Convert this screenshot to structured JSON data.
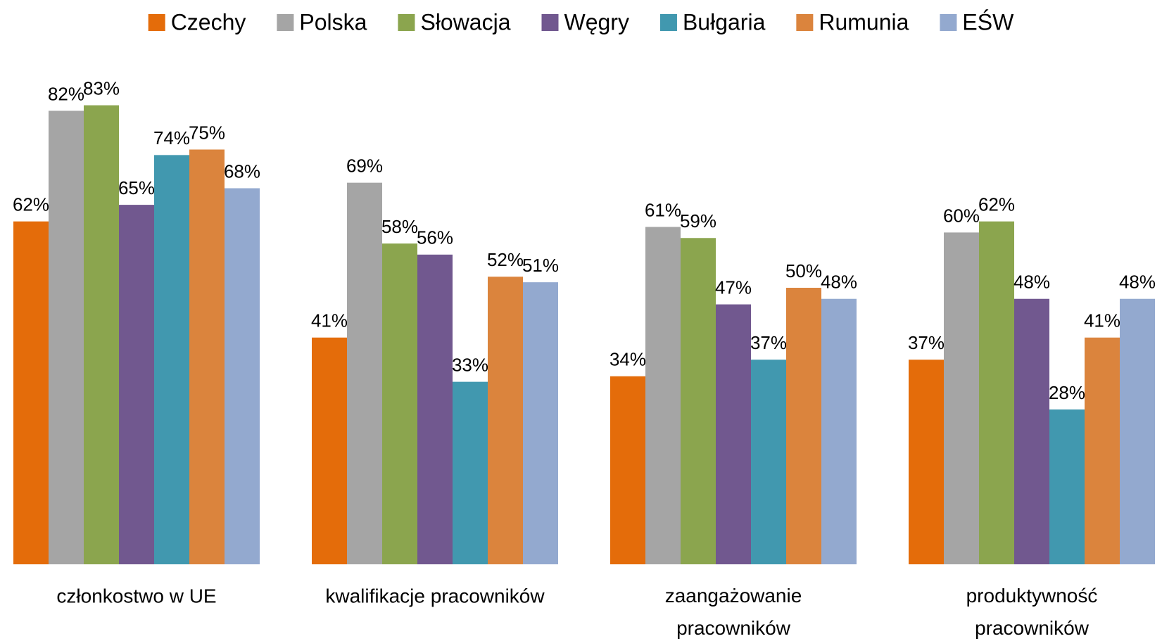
{
  "chart_data": {
    "type": "bar",
    "categories": [
      "członkostwo w UE",
      "kwalifikacje pracowników",
      "zaangażowanie pracowników",
      "produktywność pracowników"
    ],
    "series": [
      {
        "name": "Czechy",
        "color": "#E46C0A",
        "values": [
          62,
          41,
          34,
          37
        ],
        "value_labels": [
          "62%",
          "41%",
          "34%",
          "37%"
        ]
      },
      {
        "name": "Polska",
        "color": "#A5A5A5",
        "values": [
          82,
          69,
          61,
          60
        ],
        "value_labels": [
          "82%",
          "69%",
          "61%",
          "60%"
        ]
      },
      {
        "name": "Słowacja",
        "color": "#8BA54E",
        "values": [
          83,
          58,
          59,
          62
        ],
        "value_labels": [
          "83%",
          "58%",
          "59%",
          "62%"
        ]
      },
      {
        "name": "Węgry",
        "color": "#71588F",
        "values": [
          65,
          56,
          47,
          48
        ],
        "value_labels": [
          "65%",
          "56%",
          "47%",
          "48%"
        ]
      },
      {
        "name": "Bułgaria",
        "color": "#4198AF",
        "values": [
          74,
          33,
          37,
          28
        ],
        "value_labels": [
          "74%",
          "33%",
          "37%",
          "28%"
        ]
      },
      {
        "name": "Rumunia",
        "color": "#DB843D",
        "values": [
          75,
          52,
          50,
          41
        ],
        "value_labels": [
          "75%",
          "52%",
          "50%",
          "41%"
        ]
      },
      {
        "name": "EŚW",
        "color": "#93A9CF",
        "values": [
          68,
          51,
          48,
          48
        ],
        "value_labels": [
          "68%",
          "51%",
          "48%",
          "48%"
        ]
      }
    ],
    "ylim": [
      0,
      100
    ],
    "legend": "top"
  }
}
